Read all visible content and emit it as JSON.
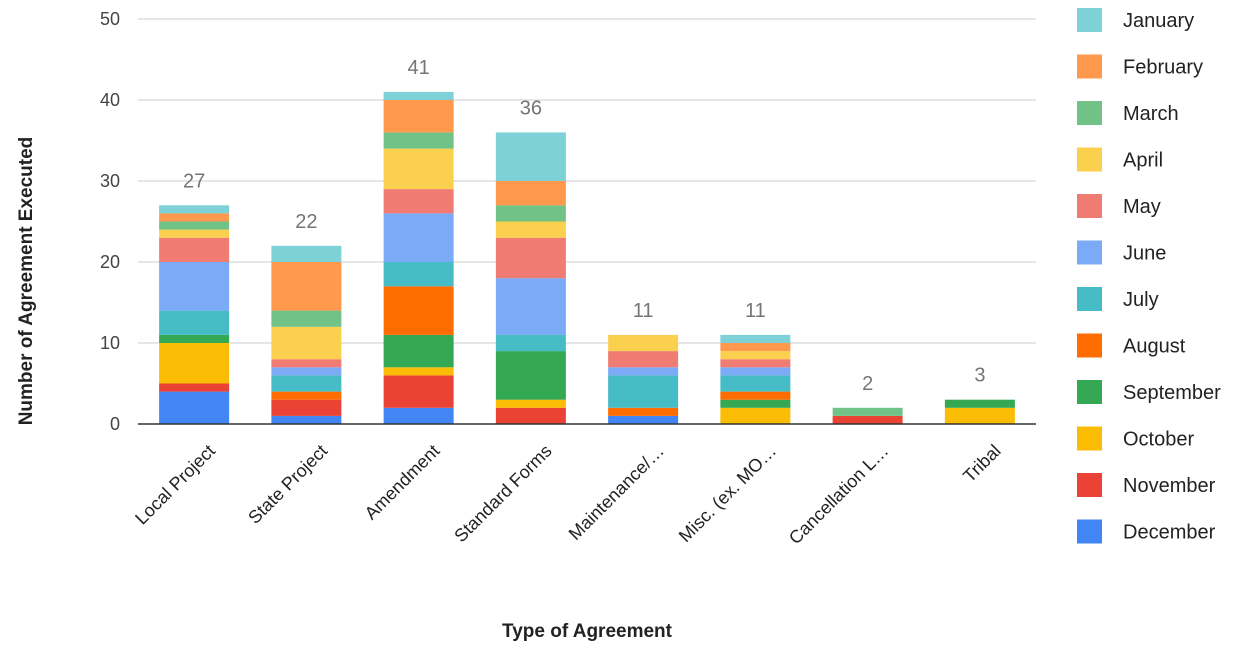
{
  "chart_data": {
    "type": "bar",
    "stacked": true,
    "title": "",
    "xlabel": "Type of Agreement",
    "ylabel": "Number of Agreement Executed",
    "ylim": [
      0,
      50
    ],
    "yticks": [
      0,
      10,
      20,
      30,
      40,
      50
    ],
    "grid": true,
    "legend_position": "right",
    "categories": [
      "Local Project",
      "State Project",
      "Amendment",
      "Standard Forms",
      "Maintenance/…",
      "Misc. (ex. MO…",
      "Cancellation L…",
      "Tribal"
    ],
    "totals": [
      27,
      22,
      41,
      36,
      11,
      11,
      2,
      3
    ],
    "series": [
      {
        "name": "December",
        "color": "#4285F4",
        "values": [
          4,
          1,
          2,
          0,
          1,
          0,
          0,
          0
        ]
      },
      {
        "name": "November",
        "color": "#EA4335",
        "values": [
          1,
          2,
          4,
          2,
          0,
          0,
          1,
          0
        ]
      },
      {
        "name": "October",
        "color": "#FBBC04",
        "values": [
          5,
          0,
          1,
          1,
          0,
          2,
          0,
          2
        ]
      },
      {
        "name": "September",
        "color": "#34A853",
        "values": [
          1,
          0,
          4,
          6,
          0,
          1,
          0,
          1
        ]
      },
      {
        "name": "August",
        "color": "#FF6D01",
        "values": [
          0,
          1,
          6,
          0,
          1,
          1,
          0,
          0
        ]
      },
      {
        "name": "July",
        "color": "#46BDC6",
        "values": [
          3,
          2,
          3,
          2,
          4,
          2,
          0,
          0
        ]
      },
      {
        "name": "June",
        "color": "#7BAAF7",
        "values": [
          6,
          1,
          6,
          7,
          1,
          1,
          0,
          0
        ]
      },
      {
        "name": "May",
        "color": "#F07B72",
        "values": [
          3,
          1,
          3,
          5,
          2,
          1,
          0,
          0
        ]
      },
      {
        "name": "April",
        "color": "#FCD04F",
        "values": [
          1,
          4,
          5,
          2,
          2,
          1,
          0,
          0
        ]
      },
      {
        "name": "March",
        "color": "#71C287",
        "values": [
          1,
          2,
          2,
          2,
          0,
          0,
          1,
          0
        ]
      },
      {
        "name": "February",
        "color": "#FF994D",
        "values": [
          1,
          6,
          4,
          3,
          0,
          1,
          0,
          0
        ]
      },
      {
        "name": "January",
        "color": "#7ED1D7",
        "values": [
          1,
          2,
          1,
          6,
          0,
          1,
          0,
          0
        ]
      }
    ]
  }
}
